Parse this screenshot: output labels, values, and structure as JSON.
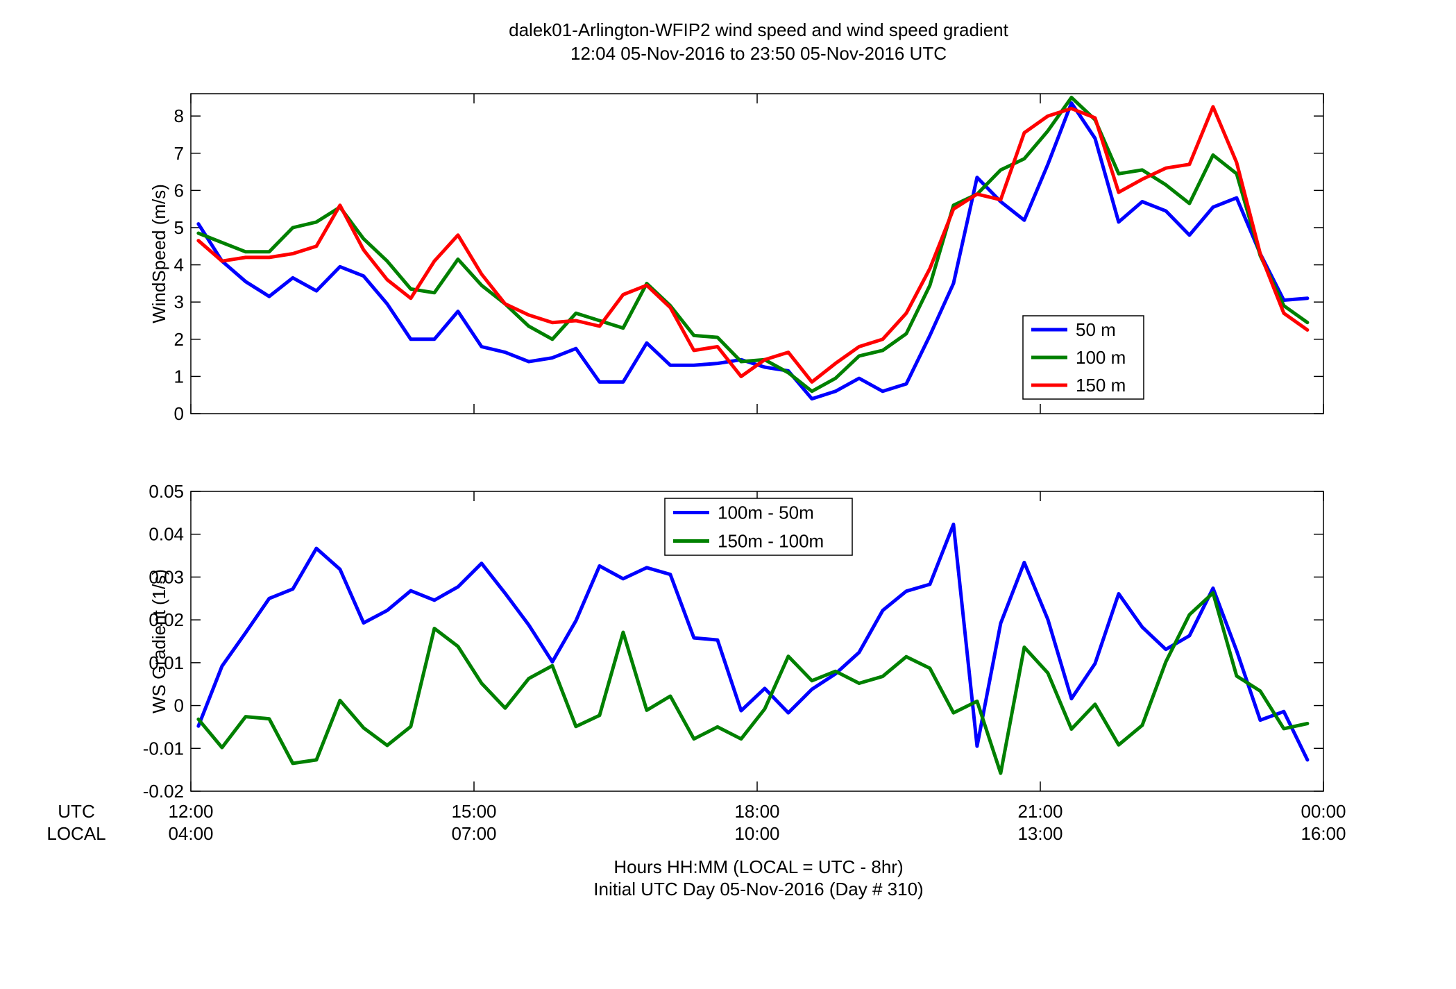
{
  "figure": {
    "title_line1": "dalek01-Arlington-WFIP2  wind speed and wind speed gradient",
    "title_line2": "12:04 05-Nov-2016 to 23:50 05-Nov-2016  UTC",
    "xlabel_line1": "Hours HH:MM  (LOCAL = UTC - 8hr)",
    "xlabel_line2": "Initial UTC Day 05-Nov-2016 (Day # 310)",
    "row_label_utc": "UTC",
    "row_label_local": "LOCAL",
    "utc_ticks": [
      "12:00",
      "15:00",
      "18:00",
      "21:00",
      "00:00"
    ],
    "local_ticks": [
      "04:00",
      "07:00",
      "10:00",
      "13:00",
      "16:00"
    ]
  },
  "chart_data": [
    {
      "type": "line",
      "ylabel": "WindSpeed (m/s)",
      "xlim": [
        12.0,
        24.0
      ],
      "ylim": [
        0,
        8.6
      ],
      "yticks": [
        0,
        1,
        2,
        3,
        4,
        5,
        6,
        7,
        8
      ],
      "ytick_labels": [
        "0",
        "1",
        "2",
        "3",
        "4",
        "5",
        "6",
        "7",
        "8"
      ],
      "legend_position": "lower-right-inside",
      "x": [
        12.08,
        12.33,
        12.58,
        12.83,
        13.08,
        13.33,
        13.58,
        13.83,
        14.08,
        14.33,
        14.58,
        14.83,
        15.08,
        15.33,
        15.58,
        15.83,
        16.08,
        16.33,
        16.58,
        16.83,
        17.08,
        17.33,
        17.58,
        17.83,
        18.08,
        18.33,
        18.58,
        18.83,
        19.08,
        19.33,
        19.58,
        19.83,
        20.08,
        20.33,
        20.58,
        20.83,
        21.08,
        21.33,
        21.58,
        21.83,
        22.08,
        22.33,
        22.58,
        22.83,
        23.08,
        23.33,
        23.58,
        23.83
      ],
      "series": [
        {
          "name": "50 m",
          "color": "#0000ff",
          "values": [
            5.1,
            4.1,
            3.55,
            3.15,
            3.65,
            3.3,
            3.95,
            3.7,
            2.95,
            2.0,
            2.0,
            2.75,
            1.8,
            1.65,
            1.4,
            1.5,
            1.75,
            0.85,
            0.85,
            1.9,
            1.3,
            1.3,
            1.35,
            1.45,
            1.25,
            1.15,
            0.4,
            0.6,
            0.95,
            0.6,
            0.8,
            2.1,
            3.5,
            6.35,
            5.7,
            5.2,
            6.7,
            8.35,
            7.4,
            5.15,
            5.7,
            5.45,
            4.8,
            5.55,
            5.8,
            4.3,
            3.05,
            3.1
          ]
        },
        {
          "name": "100 m",
          "color": "#008000",
          "values": [
            4.85,
            4.6,
            4.35,
            4.35,
            5.0,
            5.15,
            5.55,
            4.7,
            4.1,
            3.35,
            3.25,
            4.15,
            3.45,
            2.95,
            2.35,
            2.0,
            2.7,
            2.5,
            2.3,
            3.5,
            2.9,
            2.1,
            2.05,
            1.4,
            1.45,
            1.1,
            0.6,
            0.95,
            1.55,
            1.7,
            2.15,
            3.45,
            5.6,
            5.9,
            6.55,
            6.85,
            7.6,
            8.5,
            7.9,
            6.45,
            6.55,
            6.15,
            5.65,
            6.95,
            6.45,
            4.25,
            2.9,
            2.45
          ]
        },
        {
          "name": "150 m",
          "color": "#ff0000",
          "values": [
            4.65,
            4.1,
            4.2,
            4.2,
            4.3,
            4.5,
            5.6,
            4.4,
            3.6,
            3.1,
            4.1,
            4.8,
            3.75,
            2.95,
            2.65,
            2.45,
            2.5,
            2.35,
            3.2,
            3.45,
            2.85,
            1.7,
            1.8,
            1.0,
            1.45,
            1.65,
            0.85,
            1.35,
            1.8,
            2.0,
            2.7,
            3.9,
            5.5,
            5.9,
            5.75,
            7.55,
            8.0,
            8.2,
            7.95,
            5.95,
            6.3,
            6.6,
            6.7,
            8.25,
            6.75,
            4.3,
            2.7,
            2.25
          ]
        }
      ]
    },
    {
      "type": "line",
      "ylabel": "WS Gradient (1/s)",
      "xlim": [
        12.0,
        24.0
      ],
      "ylim": [
        -0.02,
        0.05
      ],
      "yticks": [
        -0.02,
        -0.01,
        0,
        0.01,
        0.02,
        0.03,
        0.04,
        0.05
      ],
      "ytick_labels": [
        "-0.02",
        "-0.01",
        "0",
        "0.01",
        "0.02",
        "0.03",
        "0.04",
        "0.05"
      ],
      "legend_position": "upper-center-inside",
      "x": [
        12.08,
        12.33,
        12.58,
        12.83,
        13.08,
        13.33,
        13.58,
        13.83,
        14.08,
        14.33,
        14.58,
        14.83,
        15.08,
        15.33,
        15.58,
        15.83,
        16.08,
        16.33,
        16.58,
        16.83,
        17.08,
        17.33,
        17.58,
        17.83,
        18.08,
        18.33,
        18.58,
        18.83,
        19.08,
        19.33,
        19.58,
        19.83,
        20.08,
        20.33,
        20.58,
        20.83,
        21.08,
        21.33,
        21.58,
        21.83,
        22.08,
        22.33,
        22.58,
        22.83,
        23.08,
        23.33,
        23.58,
        23.83
      ],
      "series": [
        {
          "name": "100m - 50m",
          "color": "#0000ff",
          "values": [
            -0.0048,
            0.0092,
            0.017,
            0.025,
            0.0272,
            0.0367,
            0.0318,
            0.0193,
            0.0222,
            0.0268,
            0.0246,
            0.0277,
            0.0332,
            0.0262,
            0.0188,
            0.0102,
            0.0198,
            0.0326,
            0.0296,
            0.0322,
            0.0306,
            0.0158,
            0.0153,
            -0.0012,
            0.004,
            -0.0017,
            0.0038,
            0.0074,
            0.0124,
            0.0222,
            0.0267,
            0.0283,
            0.0423,
            -0.0095,
            0.0192,
            0.0334,
            0.0201,
            0.0016,
            0.0098,
            0.0261,
            0.0183,
            0.0131,
            0.0163,
            0.0274,
            0.0128,
            -0.0034,
            -0.0014,
            -0.0127
          ]
        },
        {
          "name": "150m - 100m",
          "color": "#008000",
          "values": [
            -0.0032,
            -0.0098,
            -0.0026,
            -0.0031,
            -0.0135,
            -0.0127,
            0.0012,
            -0.0052,
            -0.0093,
            -0.0049,
            0.018,
            0.0138,
            0.0052,
            -0.0006,
            0.0063,
            0.0093,
            -0.0049,
            -0.0023,
            0.0171,
            -0.0011,
            0.0022,
            -0.0078,
            -0.005,
            -0.0078,
            -0.0008,
            0.0115,
            0.0058,
            0.008,
            0.0052,
            0.0068,
            0.0114,
            0.0087,
            -0.0017,
            0.001,
            -0.0158,
            0.0136,
            0.0076,
            -0.0055,
            0.0003,
            -0.0092,
            -0.0046,
            0.0102,
            0.0212,
            0.0263,
            0.0069,
            0.0034,
            -0.0054,
            -0.0042
          ]
        }
      ]
    }
  ]
}
